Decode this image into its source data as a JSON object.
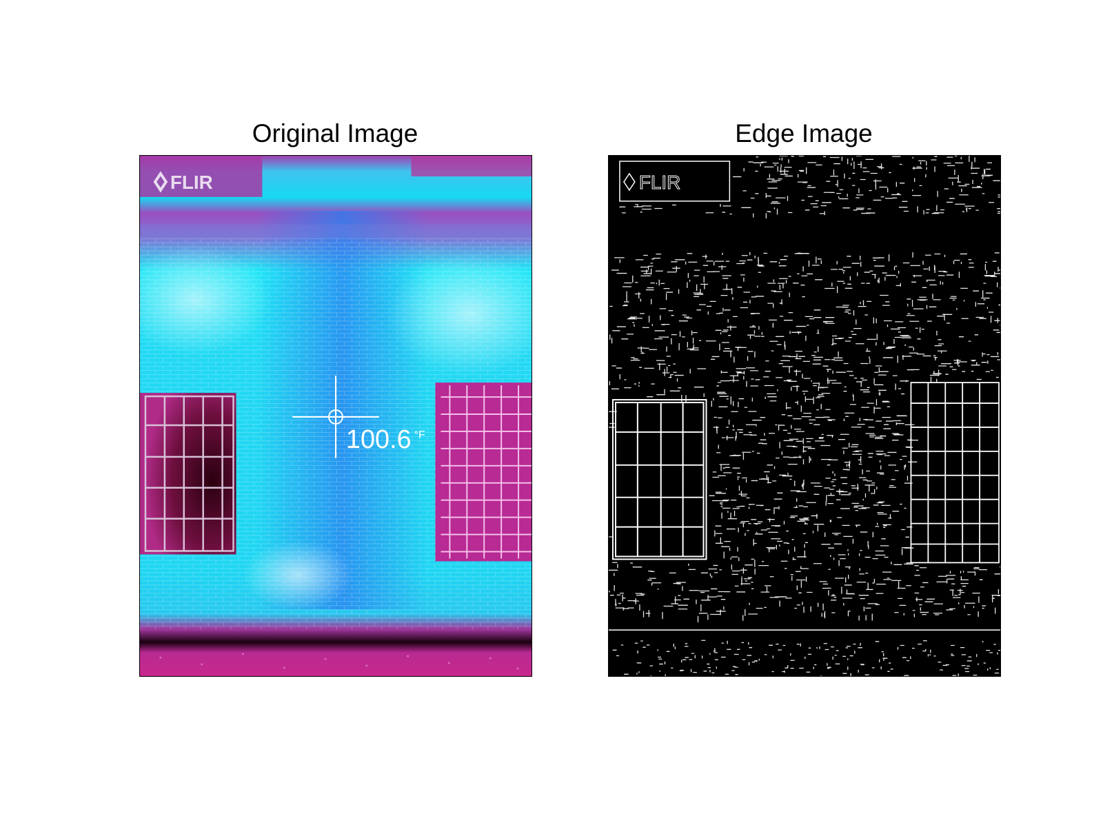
{
  "figure": {
    "panels": [
      {
        "id": "original",
        "title": "Original Image",
        "overlay": {
          "logo_text": "FLIR",
          "temperature_value": "100.6",
          "temperature_unit": "°F"
        }
      },
      {
        "id": "edge",
        "title": "Edge Image",
        "overlay": {
          "logo_text": "FLIR"
        }
      }
    ]
  },
  "colors": {
    "cold": "#1ee6f5",
    "mid": "#2a8cf0",
    "warm": "#a8359e",
    "hot": "#d4208c",
    "darkest": "#1a0010",
    "edge_line": "#ffffff",
    "edge_bg": "#000000"
  }
}
